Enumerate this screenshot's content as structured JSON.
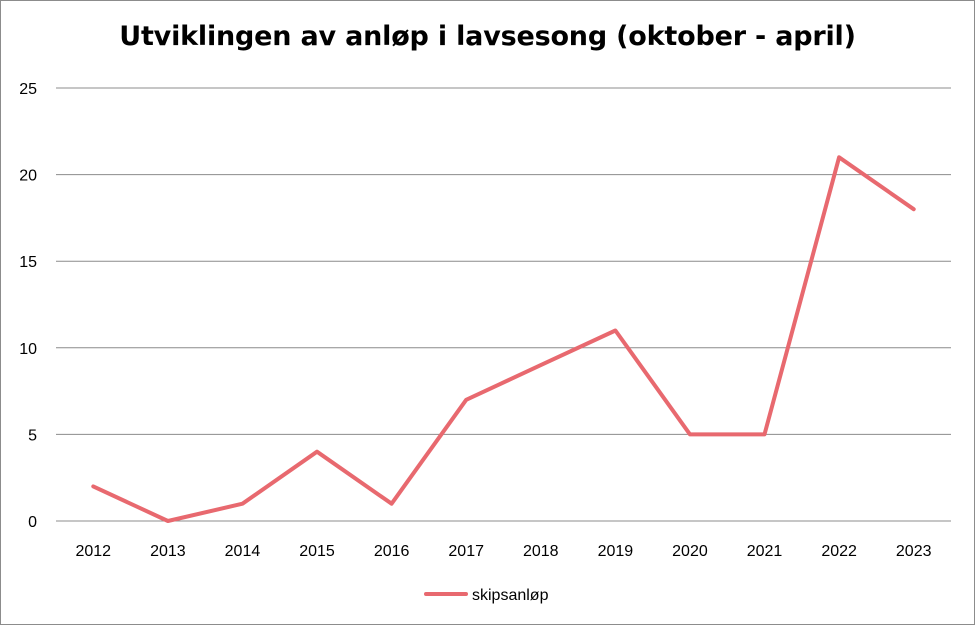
{
  "chart_data": {
    "type": "line",
    "title": "Utviklingen av anløp i lavsesong (oktober - april)",
    "xlabel": "",
    "ylabel": "",
    "categories": [
      "2012",
      "2013",
      "2014",
      "2015",
      "2016",
      "2017",
      "2018",
      "2019",
      "2020",
      "2021",
      "2022",
      "2023"
    ],
    "series": [
      {
        "name": "skipsanløp",
        "values": [
          2,
          0,
          1,
          4,
          1,
          7,
          9,
          11,
          5,
          5,
          21,
          18
        ],
        "color": "#e8696f"
      }
    ],
    "ylim": [
      0,
      25
    ],
    "yticks": [
      0,
      5,
      10,
      15,
      20,
      25
    ],
    "grid": true,
    "legend": "bottom"
  }
}
